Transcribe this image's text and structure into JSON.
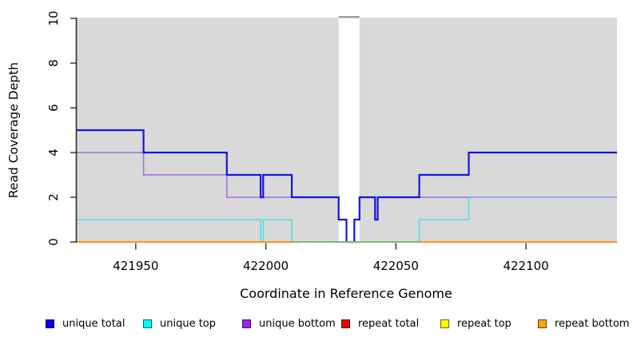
{
  "chart_data": {
    "type": "line",
    "subtype": "step-coverage",
    "title": "",
    "xlabel": "Coordinate in Reference Genome",
    "ylabel": "Read Coverage Depth",
    "xlim": [
      421927,
      422135
    ],
    "ylim": [
      0,
      10
    ],
    "x_ticks": [
      421950,
      422000,
      422050,
      422100
    ],
    "y_ticks": [
      0,
      2,
      4,
      6,
      8,
      10
    ],
    "grid": "off",
    "plot_background": "#d9d9d9",
    "step_mode": "after",
    "series": [
      {
        "name": "unique total",
        "color": "#1414e4",
        "line_width": 2.2,
        "points": [
          [
            421927,
            5
          ],
          [
            421953,
            4
          ],
          [
            421985,
            3
          ],
          [
            421998,
            2
          ],
          [
            421999,
            3
          ],
          [
            422010,
            2
          ],
          [
            422028,
            1
          ],
          [
            422031,
            0
          ],
          [
            422034,
            1
          ],
          [
            422036,
            2
          ],
          [
            422042,
            1
          ],
          [
            422043,
            2
          ],
          [
            422059,
            3
          ],
          [
            422078,
            4
          ],
          [
            422135,
            4
          ]
        ]
      },
      {
        "name": "unique top",
        "color": "#4de0e2",
        "line_width": 1.6,
        "points": [
          [
            421927,
            1
          ],
          [
            421998,
            0
          ],
          [
            421999,
            1
          ],
          [
            422010,
            0
          ],
          [
            422059,
            1
          ],
          [
            422078,
            2
          ],
          [
            422135,
            2
          ]
        ]
      },
      {
        "name": "unique bottom",
        "color": "#a87cdd",
        "line_width": 1.8,
        "points": [
          [
            421927,
            4
          ],
          [
            421953,
            3
          ],
          [
            421985,
            2
          ],
          [
            422028,
            1
          ],
          [
            422031,
            0
          ],
          [
            422034,
            1
          ],
          [
            422036,
            2
          ],
          [
            422042,
            1
          ],
          [
            422043,
            2
          ],
          [
            422135,
            2
          ]
        ]
      },
      {
        "name": "repeat total",
        "color": "#cc0000",
        "line_width": 1.6,
        "points": [
          [
            421927,
            0
          ],
          [
            422135,
            0
          ]
        ]
      },
      {
        "name": "repeat top",
        "color": "#f2f200",
        "line_width": 1.6,
        "points": [
          [
            421927,
            0
          ],
          [
            422135,
            0
          ]
        ]
      },
      {
        "name": "repeat bottom",
        "color": "#ff9214",
        "line_width": 2.0,
        "points": [
          [
            421927,
            0
          ],
          [
            422135,
            0
          ]
        ]
      }
    ],
    "draw_order": [
      3,
      4,
      2,
      1,
      0,
      5
    ],
    "overlap_segments": [
      {
        "x1": 422010,
        "x2": 422059,
        "y": 0,
        "color": "#6cbe82",
        "width": 1.8,
        "note": "unique top overlapping repeat bottom at depth 0"
      },
      {
        "x1": 422078,
        "x2": 422135,
        "y": 2,
        "color": "#96a7e8",
        "width": 1.8,
        "note": "unique top overlapping unique bottom at depth 2"
      }
    ],
    "gap_region": {
      "x1": 422028,
      "x2": 422036,
      "fill": "#ffffff",
      "cap_color": "#a1a1a1"
    }
  },
  "axes": {
    "x_title": "Coordinate in Reference Genome",
    "y_title": "Read Coverage Depth",
    "x_tick_labels": [
      "421950",
      "422000",
      "422050",
      "422100"
    ],
    "y_tick_labels": [
      "0",
      "2",
      "4",
      "6",
      "8",
      "10"
    ]
  },
  "legend": {
    "items": [
      {
        "label": "unique total",
        "color": "#0000f0"
      },
      {
        "label": "unique top",
        "color": "#00ffff"
      },
      {
        "label": "unique bottom",
        "color": "#a020f0"
      },
      {
        "label": "repeat total",
        "color": "#ee0000"
      },
      {
        "label": "repeat top",
        "color": "#ffff00"
      },
      {
        "label": "repeat bottom",
        "color": "#ffa500"
      }
    ]
  }
}
